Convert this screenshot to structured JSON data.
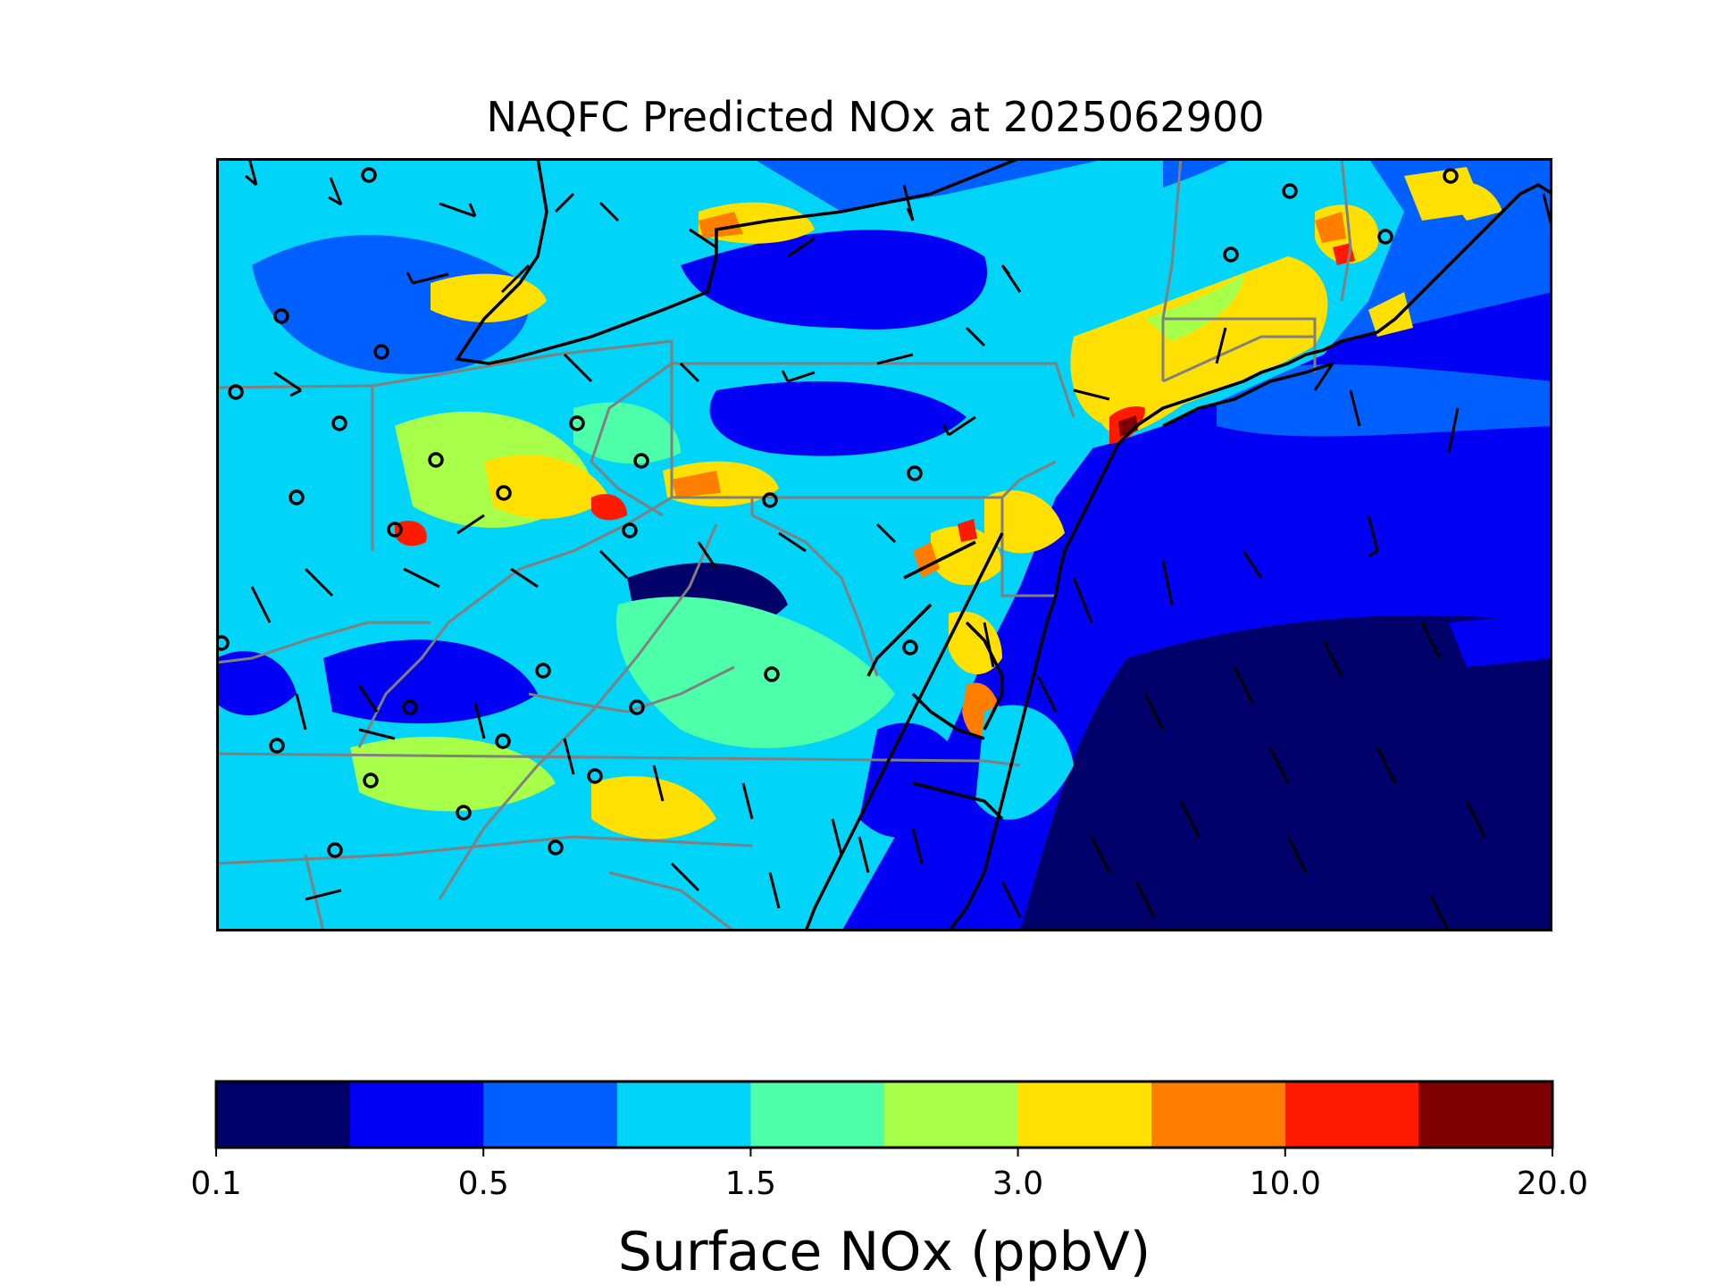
{
  "title": "NAQFC Predicted NOx at 2025062900",
  "map": {
    "variable": "Surface NOx",
    "units": "ppbV",
    "overlays": [
      "wind-barbs",
      "monitor-sites",
      "coastlines",
      "state-borders"
    ]
  },
  "colorbar": {
    "label": "Surface NOx (ppbV)",
    "colors": [
      "#00006a",
      "#0000f5",
      "#0060ff",
      "#00d4f8",
      "#4dffa8",
      "#a8ff4a",
      "#ffe000",
      "#ff7e00",
      "#ff1a00",
      "#7f0000"
    ],
    "tick_labels": [
      "0.1",
      "0.5",
      "1.5",
      "3.0",
      "10.0",
      "20.0"
    ],
    "tick_bin_index": [
      0,
      2,
      4,
      6,
      8,
      10
    ]
  }
}
